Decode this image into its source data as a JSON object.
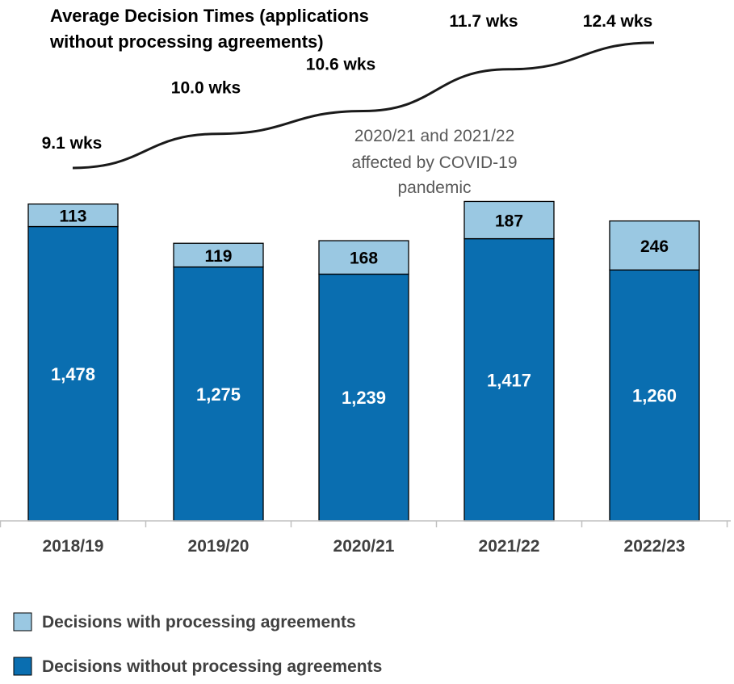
{
  "chart_data": {
    "type": "bar",
    "stacked": true,
    "categories": [
      "2018/19",
      "2019/20",
      "2020/21",
      "2021/22",
      "2022/23"
    ],
    "series": [
      {
        "name": "Decisions without processing agreements",
        "values": [
          1478,
          1275,
          1239,
          1417,
          1260
        ],
        "value_labels": [
          "1,478",
          "1,275",
          "1,239",
          "1,417",
          "1,260"
        ],
        "color": "#0a6eb0"
      },
      {
        "name": "Decisions with processing agreements",
        "values": [
          113,
          119,
          168,
          187,
          246
        ],
        "value_labels": [
          "113",
          "119",
          "168",
          "187",
          "246"
        ],
        "color": "#9ac8e2"
      }
    ],
    "ylim": [
      0,
      1600
    ],
    "grid": false,
    "legend_position": "bottom-left",
    "line_overlay": {
      "title_lines": [
        "Average Decision Times (applications",
        "without processing agreements)"
      ],
      "values": [
        9.1,
        10.0,
        10.6,
        11.7,
        12.4
      ],
      "labels": [
        "9.1 wks",
        "10.0 wks",
        "10.6 wks",
        "11.7 wks",
        "12.4 wks"
      ]
    },
    "annotation_lines": [
      "2020/21 and 2021/22",
      "affected by COVID-19",
      "pandemic"
    ]
  }
}
